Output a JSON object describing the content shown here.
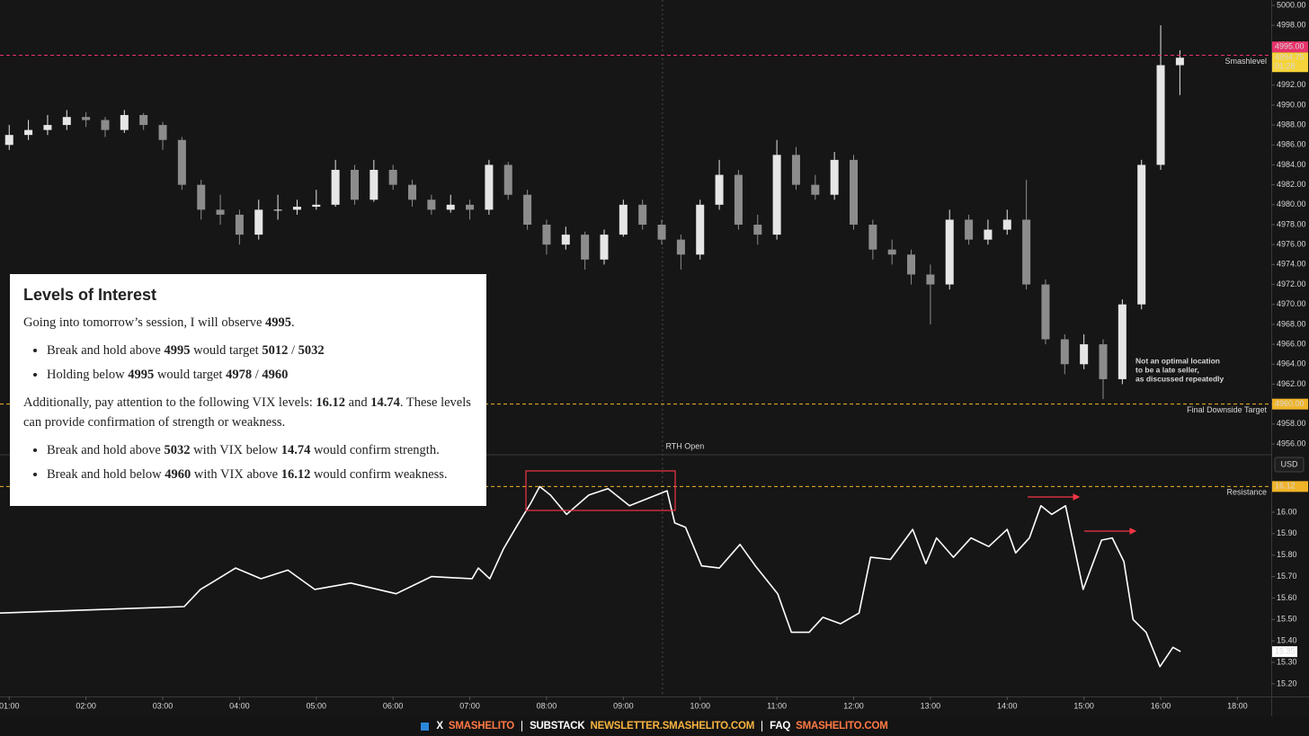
{
  "chart_data": [
    {
      "type": "candlestick",
      "xlim": [
        0.88,
        17.44
      ],
      "ylim": [
        4954.92,
        5000.54
      ],
      "yticks": [
        {
          "value": 4956,
          "label": "4956.00"
        },
        {
          "value": 4958,
          "label": "4958.00"
        },
        {
          "value": 4960,
          "label": "4960.00"
        },
        {
          "value": 4962,
          "label": "4962.00"
        },
        {
          "value": 4964,
          "label": "4964.00"
        },
        {
          "value": 4966,
          "label": "4966.00"
        },
        {
          "value": 4968,
          "label": "4968.00"
        },
        {
          "value": 4970,
          "label": "4970.00"
        },
        {
          "value": 4972,
          "label": "4972.00"
        },
        {
          "value": 4974,
          "label": "4974.00"
        },
        {
          "value": 4976,
          "label": "4976.00"
        },
        {
          "value": 4978,
          "label": "4978.00"
        },
        {
          "value": 4980,
          "label": "4980.00"
        },
        {
          "value": 4982,
          "label": "4982.00"
        },
        {
          "value": 4984,
          "label": "4984.00"
        },
        {
          "value": 4986,
          "label": "4986.00"
        },
        {
          "value": 4988,
          "label": "4988.00"
        },
        {
          "value": 4990,
          "label": "4990.00"
        },
        {
          "value": 4992,
          "label": "4992.00"
        },
        {
          "value": 4994,
          "label": "4994.00"
        },
        {
          "value": 4996,
          "label": "4996.00"
        },
        {
          "value": 4998,
          "label": "4998.00"
        },
        {
          "value": 5000,
          "label": "5000.00"
        }
      ],
      "up_color": "#e6e6e6",
      "down_color": "#8c8c8c",
      "x": [
        1,
        1.25,
        1.5,
        1.75,
        2,
        2.25,
        2.5,
        2.75,
        3,
        3.25,
        3.5,
        3.75,
        4,
        4.25,
        4.5,
        4.75,
        5,
        5.25,
        5.5,
        5.75,
        6,
        6.25,
        6.5,
        6.75,
        7,
        7.25,
        7.5,
        7.75,
        8,
        8.25,
        8.5,
        8.75,
        9,
        9.25,
        9.5,
        9.75,
        10,
        10.25,
        10.5,
        10.75,
        11,
        11.25,
        11.5,
        11.75,
        12,
        12.25,
        12.5,
        12.75,
        13,
        13.25,
        13.5,
        13.75,
        14,
        14.25,
        14.5,
        14.75,
        15,
        15.25,
        15.5,
        15.75,
        16,
        16.25
      ],
      "values": [
        [
          4986,
          4988,
          4985.5,
          4987
        ],
        [
          4987,
          4988.5,
          4986.5,
          4987.5
        ],
        [
          4987.5,
          4989,
          4987,
          4988
        ],
        [
          4988,
          4989.5,
          4987.5,
          4988.8
        ],
        [
          4988.8,
          4989.3,
          4987.8,
          4988.5
        ],
        [
          4988.5,
          4988.8,
          4986.8,
          4987.5
        ],
        [
          4987.5,
          4989.5,
          4987.2,
          4989
        ],
        [
          4989,
          4989.2,
          4987.5,
          4988
        ],
        [
          4988,
          4988.3,
          4985.5,
          4986.5
        ],
        [
          4986.5,
          4986.8,
          4981.5,
          4982
        ],
        [
          4982,
          4982.5,
          4978.5,
          4979.5
        ],
        [
          4979.5,
          4981,
          4978,
          4979
        ],
        [
          4979,
          4979.5,
          4976,
          4977
        ],
        [
          4977,
          4980.5,
          4976.5,
          4979.5
        ],
        [
          4979.5,
          4981,
          4978.5,
          4979.5
        ],
        [
          4979.5,
          4980.5,
          4979,
          4979.8
        ],
        [
          4979.8,
          4981.5,
          4979.5,
          4980
        ],
        [
          4980,
          4984.5,
          4979.8,
          4983.5
        ],
        [
          4983.5,
          4984,
          4980,
          4980.5
        ],
        [
          4980.5,
          4984.5,
          4980.3,
          4983.5
        ],
        [
          4983.5,
          4984,
          4981.5,
          4982
        ],
        [
          4982,
          4982.5,
          4979.8,
          4980.5
        ],
        [
          4980.5,
          4981,
          4979,
          4979.5
        ],
        [
          4979.5,
          4981,
          4979.2,
          4980
        ],
        [
          4980,
          4980.5,
          4978.5,
          4979.5
        ],
        [
          4979.5,
          4984.5,
          4979,
          4984
        ],
        [
          4984,
          4984.3,
          4980.5,
          4981
        ],
        [
          4981,
          4981.5,
          4977.5,
          4978
        ],
        [
          4978,
          4978.5,
          4975,
          4976
        ],
        [
          4976,
          4977.8,
          4975.5,
          4977
        ],
        [
          4977,
          4977.3,
          4973.5,
          4974.5
        ],
        [
          4974.5,
          4977.5,
          4974,
          4977
        ],
        [
          4977,
          4980.5,
          4976.8,
          4980
        ],
        [
          4980,
          4980.5,
          4977.5,
          4978
        ],
        [
          4978,
          4978.5,
          4976,
          4976.5
        ],
        [
          4976.5,
          4977,
          4973.5,
          4975
        ],
        [
          4975,
          4980.5,
          4974.5,
          4980
        ],
        [
          4980,
          4984.5,
          4979.5,
          4983
        ],
        [
          4983,
          4983.5,
          4977.5,
          4978
        ],
        [
          4978,
          4979,
          4976,
          4977
        ],
        [
          4977,
          4986.5,
          4976.5,
          4985
        ],
        [
          4985,
          4985.8,
          4981.5,
          4982
        ],
        [
          4982,
          4983,
          4980.5,
          4981
        ],
        [
          4981,
          4985.3,
          4980.5,
          4984.5
        ],
        [
          4984.5,
          4985,
          4977.5,
          4978
        ],
        [
          4978,
          4978.5,
          4974.5,
          4975.5
        ],
        [
          4975.5,
          4976.5,
          4974,
          4975
        ],
        [
          4975,
          4975.5,
          4972,
          4973
        ],
        [
          4973,
          4974,
          4968,
          4972
        ],
        [
          4972,
          4979.5,
          4971.5,
          4978.5
        ],
        [
          4978.5,
          4979,
          4976,
          4976.5
        ],
        [
          4976.5,
          4978.5,
          4976,
          4977.5
        ],
        [
          4977.5,
          4979.5,
          4977,
          4978.5
        ],
        [
          4978.5,
          4982.5,
          4971.5,
          4972
        ],
        [
          4972,
          4972.5,
          4966,
          4966.5
        ],
        [
          4966.5,
          4967,
          4963,
          4964
        ],
        [
          4964,
          4967,
          4963.5,
          4966
        ],
        [
          4966,
          4966.5,
          4960.5,
          4962.5
        ],
        [
          4962.5,
          4970.5,
          4962,
          4970
        ],
        [
          4970,
          4984.5,
          4969.5,
          4984
        ],
        [
          4984,
          4998,
          4983.5,
          4994
        ],
        [
          4994,
          4995.5,
          4991,
          4994.75
        ]
      ],
      "levels": [
        {
          "value": 4995,
          "label": "4995.00",
          "text": "Smashlevel",
          "color": "#e8336b"
        },
        {
          "value": 4960,
          "label": "4960.00",
          "text": "Final Downside Target",
          "color": "#f0b429"
        }
      ],
      "last": {
        "value": 4994.75,
        "label": "4994.75",
        "countdown": "01:28",
        "color": "#f5d33a"
      },
      "events": [
        {
          "x": 9.51,
          "label": "RTH Open"
        }
      ],
      "annotation": [
        "Not an optimal location",
        "to be a late seller,",
        "as discussed repeatedly"
      ]
    },
    {
      "type": "line",
      "xlim": [
        0.88,
        17.44
      ],
      "ylim": [
        15.141,
        16.264
      ],
      "yticks": [
        {
          "value": 15.2,
          "label": "15.20"
        },
        {
          "value": 15.3,
          "label": "15.30"
        },
        {
          "value": 15.4,
          "label": "15.40"
        },
        {
          "value": 15.5,
          "label": "15.50"
        },
        {
          "value": 15.6,
          "label": "15.60"
        },
        {
          "value": 15.7,
          "label": "15.70"
        },
        {
          "value": 15.8,
          "label": "15.80"
        },
        {
          "value": 15.9,
          "label": "15.90"
        },
        {
          "value": 16.0,
          "label": "16.00"
        }
      ],
      "xticks": [
        {
          "value": 1,
          "label": "01:00"
        },
        {
          "value": 2,
          "label": "02:00"
        },
        {
          "value": 3,
          "label": "03:00"
        },
        {
          "value": 4,
          "label": "04:00"
        },
        {
          "value": 5,
          "label": "05:00"
        },
        {
          "value": 6,
          "label": "06:00"
        },
        {
          "value": 7,
          "label": "07:00"
        },
        {
          "value": 8,
          "label": "08:00"
        },
        {
          "value": 9,
          "label": "09:00"
        },
        {
          "value": 10,
          "label": "10:00"
        },
        {
          "value": 11,
          "label": "11:00"
        },
        {
          "value": 12,
          "label": "12:00"
        },
        {
          "value": 13,
          "label": "13:00"
        },
        {
          "value": 14,
          "label": "14:00"
        },
        {
          "value": 15,
          "label": "15:00"
        },
        {
          "value": 16,
          "label": "16:00"
        },
        {
          "value": 17,
          "label": "18:00"
        }
      ],
      "color": "#ffffff",
      "x": [
        0.88,
        3.28,
        3.49,
        3.63,
        3.95,
        4.28,
        4.63,
        4.98,
        5.45,
        6.04,
        6.5,
        7.03,
        7.11,
        7.26,
        7.44,
        7.62,
        7.79,
        7.91,
        8.05,
        8.26,
        8.55,
        8.8,
        9.08,
        9.57,
        9.67,
        9.81,
        10.02,
        10.25,
        10.52,
        10.72,
        11.01,
        11.19,
        11.42,
        11.6,
        11.83,
        12.07,
        12.22,
        12.48,
        12.77,
        12.94,
        13.08,
        13.3,
        13.53,
        13.76,
        14.0,
        14.11,
        14.29,
        14.44,
        14.58,
        14.76,
        14.99,
        15.23,
        15.37,
        15.52,
        15.64,
        15.81,
        15.99,
        16.16,
        16.26
      ],
      "values": [
        15.53,
        15.56,
        15.64,
        15.67,
        15.74,
        15.69,
        15.73,
        15.64,
        15.67,
        15.62,
        15.7,
        15.69,
        15.74,
        15.69,
        15.83,
        15.94,
        16.04,
        16.12,
        16.08,
        15.99,
        16.08,
        16.11,
        16.03,
        16.1,
        15.95,
        15.93,
        15.75,
        15.74,
        15.85,
        15.75,
        15.62,
        15.44,
        15.44,
        15.51,
        15.48,
        15.53,
        15.79,
        15.78,
        15.92,
        15.76,
        15.88,
        15.79,
        15.88,
        15.84,
        15.92,
        15.81,
        15.88,
        16.03,
        15.99,
        16.03,
        15.64,
        15.87,
        15.88,
        15.77,
        15.5,
        15.44,
        15.28,
        15.37,
        15.35
      ],
      "levels": [
        {
          "value": 16.12,
          "label": "16.12",
          "text": "Resistance",
          "color": "#f0b429"
        }
      ],
      "last": {
        "value": 15.35,
        "label": "15.35",
        "color": "#ffffff"
      },
      "currency": "USD"
    }
  ],
  "notes": {
    "title": "Levels of Interest",
    "intro": [
      "Going into tomorrow’s session, I will observe ",
      "4995",
      "."
    ],
    "bullets1": [
      [
        "Break and hold above ",
        "4995",
        " would target ",
        "5012",
        " / ",
        "5032"
      ],
      [
        "Holding below ",
        "4995",
        " would target ",
        "4978",
        " / ",
        "4960"
      ]
    ],
    "para": [
      "Additionally, pay attention to the following VIX levels: ",
      "16.12",
      " and ",
      "14.74",
      ". These levels can provide confirmation of strength or weakness."
    ],
    "bullets2": [
      [
        "Break and hold above ",
        "5032",
        " with VIX below ",
        "14.74",
        " would confirm strength."
      ],
      [
        "Break and hold below ",
        "4960",
        " with VIX above ",
        "16.12",
        " would confirm weakness."
      ]
    ]
  },
  "footer": [
    {
      "label": "X",
      "link": "SMASHELITO",
      "color": "#ff7a45"
    },
    {
      "label": "SUBSTACK",
      "link": "NEWSLETTER.SMASHELITO.COM",
      "color": "#f8b440"
    },
    {
      "label": "FAQ",
      "link": "SMASHELITO.COM",
      "color": "#ff7a45"
    }
  ]
}
